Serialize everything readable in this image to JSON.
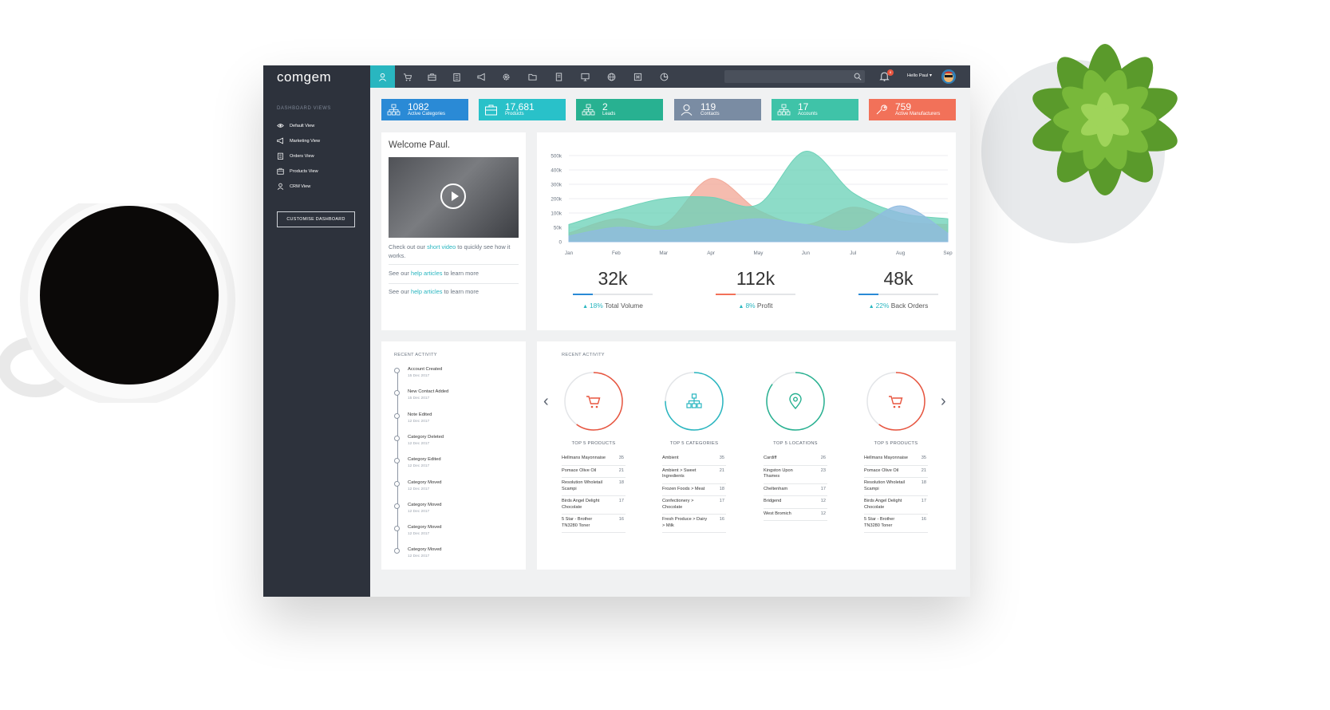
{
  "app": {
    "logo": "comgem"
  },
  "sidebar": {
    "section_title": "DASHBOARD VIEWS",
    "items": [
      {
        "label": "Default View",
        "icon": "eye-icon"
      },
      {
        "label": "Marketing View",
        "icon": "megaphone-icon"
      },
      {
        "label": "Orders View",
        "icon": "clipboard-icon"
      },
      {
        "label": "Products View",
        "icon": "box-icon"
      },
      {
        "label": "CRM View",
        "icon": "user-icon"
      }
    ],
    "customise_button": "CUSTOMISE DASHBOARD"
  },
  "topbar": {
    "nav_icons": [
      "user-icon",
      "cart-icon",
      "briefcase-icon",
      "clipboard-icon",
      "megaphone-icon",
      "gear-icon",
      "folder-icon",
      "document-icon",
      "monitor-icon",
      "globe-icon",
      "h-box-icon",
      "pie-chart-icon"
    ],
    "search_placeholder": "",
    "notification_count": "8",
    "greeting": "Hello Paul"
  },
  "stats": [
    {
      "value": "1082",
      "label": "Active Categories",
      "color": "#2a8ad6",
      "icon": "sitemap-icon"
    },
    {
      "value": "17,681",
      "label": "Products",
      "color": "#29c1c9",
      "icon": "briefcase-icon"
    },
    {
      "value": "2",
      "label": "Leads",
      "color": "#28b191",
      "icon": "sitemap-icon"
    },
    {
      "value": "119",
      "label": "Contacts",
      "color": "#7a8ca3",
      "icon": "user-icon"
    },
    {
      "value": "17",
      "label": "Accounts",
      "color": "#3fc3a8",
      "icon": "sitemap-icon"
    },
    {
      "value": "759",
      "label": "Active Manufacturers",
      "color": "#f27159",
      "icon": "wrench-icon"
    }
  ],
  "welcome": {
    "title": "Welcome Paul.",
    "video_text_before": "Check out our ",
    "video_link": "short video",
    "video_text_after": " to quickly see how it works.",
    "help1_before": "See our ",
    "help1_link": "help articles",
    "help1_after": " to learn more",
    "help2_before": "See our ",
    "help2_link": "help articles",
    "help2_after": " to learn more"
  },
  "chart_data": {
    "type": "area",
    "categories": [
      "Jan",
      "Feb",
      "Mar",
      "Apr",
      "May",
      "Jun",
      "Jul",
      "Aug",
      "Sep"
    ],
    "y_ticks": [
      "500k",
      "400k",
      "300k",
      "200k",
      "100k",
      "50k",
      "0"
    ],
    "ylim": [
      0,
      500000
    ],
    "series": [
      {
        "color": "#f2a999",
        "values": [
          30000,
          80000,
          60000,
          340000,
          120000,
          60000,
          140000,
          70000,
          60000
        ]
      },
      {
        "color": "#6dd2b8",
        "values": [
          60000,
          120000,
          200000,
          210000,
          160000,
          530000,
          240000,
          100000,
          80000
        ]
      },
      {
        "color": "#8fbbe0",
        "values": [
          20000,
          50000,
          40000,
          60000,
          80000,
          60000,
          40000,
          150000,
          30000
        ]
      }
    ],
    "grid": true
  },
  "kpis": [
    {
      "value": "32k",
      "pct": "18%",
      "label": "Total Volume",
      "color": "#2a8ad6"
    },
    {
      "value": "112k",
      "pct": "8%",
      "label": "Profit",
      "color": "#f27159"
    },
    {
      "value": "48k",
      "pct": "22%",
      "label": "Back Orders",
      "color": "#2a8ad6"
    }
  ],
  "recent_activity": {
    "title": "RECENT ACTIVITY",
    "items": [
      {
        "title": "Account Created",
        "date": "15 Dec 2017"
      },
      {
        "title": "New Contact Added",
        "date": "15 Dec 2017"
      },
      {
        "title": "Note Edited",
        "date": "12 Dec 2017"
      },
      {
        "title": "Category Deleted",
        "date": "12 Dec 2017"
      },
      {
        "title": "Category Edited",
        "date": "12 Dec 2017"
      },
      {
        "title": "Category Moved",
        "date": "12 Dec 2017"
      },
      {
        "title": "Category Moved",
        "date": "12 Dec 2017"
      },
      {
        "title": "Category Moved",
        "date": "12 Dec 2017"
      },
      {
        "title": "Category Moved",
        "date": "12 Dec 2017"
      }
    ]
  },
  "tops": {
    "title": "RECENT ACTIVITY",
    "columns": [
      {
        "label": "TOP 5 PRODUCTS",
        "color": "#e8553f",
        "icon": "cart-icon",
        "progress": 0.6,
        "rows": [
          {
            "name": "Hellmans Mayonnaise",
            "value": "35"
          },
          {
            "name": "Pomace Olive Oil",
            "value": "21"
          },
          {
            "name": "Resolution Wholetail Scampi",
            "value": "18"
          },
          {
            "name": "Birds Angel Delight Chocolate",
            "value": "17"
          },
          {
            "name": "5 Star - Brother TN3280 Toner",
            "value": "16"
          }
        ]
      },
      {
        "label": "TOP 5 CATEGORIES",
        "color": "#29b6c0",
        "icon": "sitemap-icon",
        "progress": 0.75,
        "rows": [
          {
            "name": "Ambient",
            "value": "35"
          },
          {
            "name": "Ambient > Sweet Ingredients",
            "value": "21"
          },
          {
            "name": "Frozen Foods > Meat",
            "value": "18"
          },
          {
            "name": "Confectionery > Chocolate",
            "value": "17"
          },
          {
            "name": "Fresh Produce > Dairy > Milk",
            "value": "16"
          }
        ]
      },
      {
        "label": "TOP 5 LOCATIONS",
        "color": "#28b191",
        "icon": "location-pin-icon",
        "progress": 0.85,
        "rows": [
          {
            "name": "Cardiff",
            "value": "26"
          },
          {
            "name": "Kingston Upon Thames",
            "value": "23"
          },
          {
            "name": "Cheltenham",
            "value": "17"
          },
          {
            "name": "Bridgend",
            "value": "12"
          },
          {
            "name": "West Bromich",
            "value": "12"
          }
        ]
      },
      {
        "label": "TOP 5 PRODUCTS",
        "color": "#e8553f",
        "icon": "cart-icon",
        "progress": 0.6,
        "rows": [
          {
            "name": "Hellmans Mayonnaise",
            "value": "35"
          },
          {
            "name": "Pomace Olive Oil",
            "value": "21"
          },
          {
            "name": "Resolution Wholetail Scampi",
            "value": "18"
          },
          {
            "name": "Birds Angel Delight Chocolate",
            "value": "17"
          },
          {
            "name": "5 Star - Brother TN3280 Toner",
            "value": "16"
          }
        ]
      }
    ]
  }
}
